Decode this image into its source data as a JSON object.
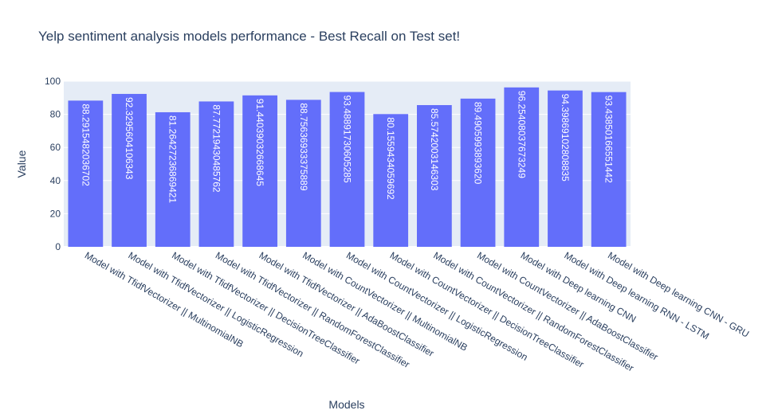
{
  "chart_data": {
    "type": "bar",
    "title": "Yelp sentiment analysis models performance - Best Recall on Test set!",
    "xlabel": "Models",
    "ylabel": "Value",
    "ylim": [
      0,
      100
    ],
    "yticks": [
      0,
      20,
      40,
      60,
      80,
      100
    ],
    "grid": true,
    "categories": [
      "Model with TfidfVectorizer || MultinomialNB",
      "Model with TfidfVectorizer || LogisticRegression",
      "Model with TfidfVectorizer || DecisionTreeClassifier",
      "Model with TfidfVectorizer || RandomForestClassifier",
      "Model with TfidfVectorizer || AdaBoostClassifier",
      "Model with CountVectorizer || MultinomialNB",
      "Model with CountVectorizer || LogisticRegression",
      "Model with CountVectorizer || DecisionTreeClassifier",
      "Model with CountVectorizer || RandomForestClassifier",
      "Model with CountVectorizer || AdaBoostClassifier",
      "Model with Deep learning CNN",
      "Model with Deep learning RNN - LSTM",
      "Model with Deep learning CNN - GRU"
    ],
    "values": [
      88.2915482036702,
      92.3295604106343,
      81.26427236869421,
      87.7721943048576,
      91.44039032668645,
      88.75636933375888,
      93.48891730605285,
      80.1559434059692,
      85.5742003146303,
      89.490599389362,
      96.25408037673249,
      94.3986910280883,
      93.43850166551442
    ],
    "value_labels": [
      "88.2915482036702",
      "92.3295604106343",
      "81.26427236869421",
      "87.77219430485762",
      "91.44039032668645",
      "88.75636933375889",
      "93.48891730605285",
      "80.1559434059692",
      "85.5742003146303",
      "89.4905993893620",
      "96.25408037673249",
      "94.39869102808835",
      "93.43850166551442"
    ],
    "colors": {
      "bar": "#636efa",
      "plot_bg": "#e5ecf6",
      "grid": "#ffffff",
      "text": "#2a3f5f"
    }
  }
}
